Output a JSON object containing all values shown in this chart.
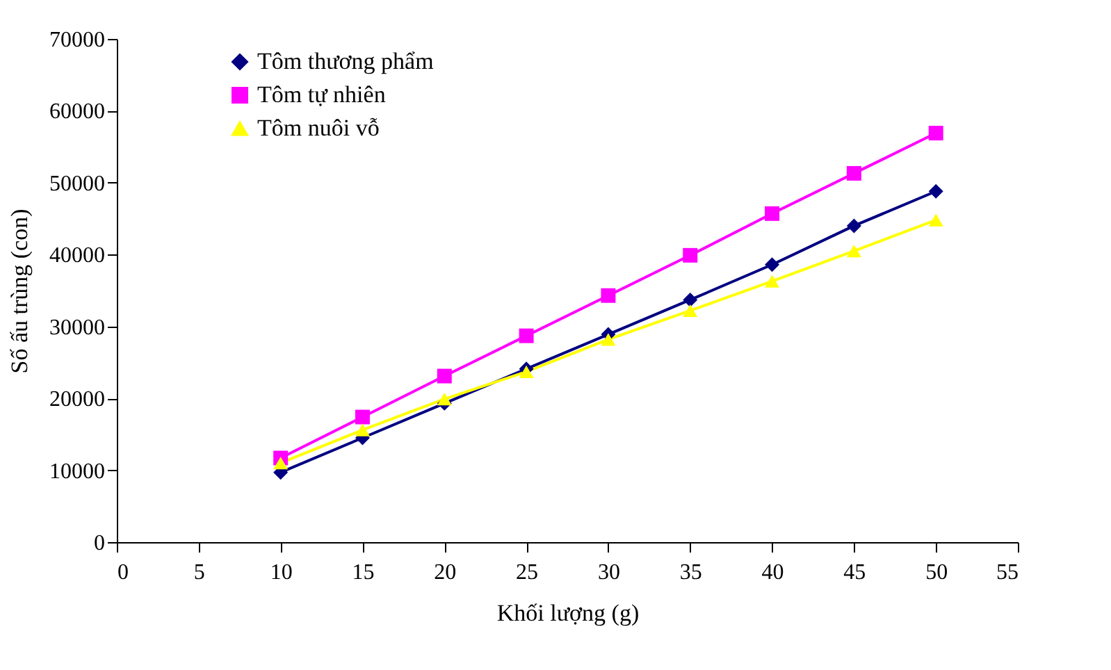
{
  "chart_data": {
    "type": "line",
    "xlabel": "Khối lượng (g)",
    "ylabel": "Số ấu trùng (con)",
    "x": [
      10,
      15,
      20,
      25,
      30,
      35,
      40,
      45,
      50
    ],
    "series": [
      {
        "name": "Tôm thương phẩm",
        "color": "#000080",
        "marker": "diamond",
        "values": [
          9700,
          14500,
          19300,
          24100,
          28900,
          33700,
          38600,
          44000,
          48800
        ]
      },
      {
        "name": "Tôm tự nhiên",
        "color": "#ff00ff",
        "marker": "square",
        "values": [
          11700,
          17400,
          23100,
          28700,
          34300,
          39900,
          45700,
          51300,
          56900
        ]
      },
      {
        "name": "Tôm nuôi vỗ",
        "color": "#ffff00",
        "marker": "triangle",
        "values": [
          11000,
          15600,
          19900,
          23700,
          28200,
          32200,
          36300,
          40500,
          44800
        ]
      }
    ],
    "xlim": [
      0,
      55
    ],
    "xticks": [
      0,
      5,
      10,
      15,
      20,
      25,
      30,
      35,
      40,
      45,
      50,
      55
    ],
    "ylim": [
      0,
      70000
    ],
    "yticks": [
      0,
      10000,
      20000,
      30000,
      40000,
      50000,
      60000,
      70000
    ],
    "grid": false,
    "legend": "top left",
    "line_style": "solid"
  }
}
